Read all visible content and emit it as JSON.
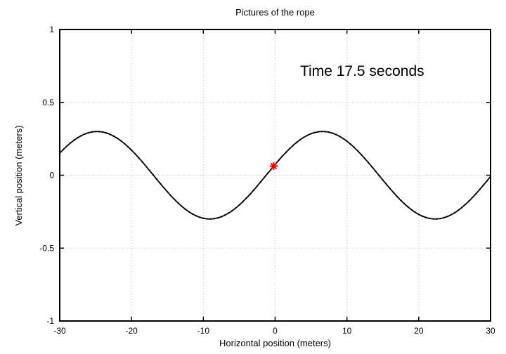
{
  "figure": {
    "title": "Pictures of the rope",
    "annotation": "Time 17.5 seconds",
    "xlabel": "Horizontal position (meters)",
    "ylabel": "Vertical position (meters)"
  },
  "colors": {
    "background": "#ffffff",
    "axis": "#000000",
    "grid": "#b8b8b8",
    "curve": "#000000",
    "marker": "#ff0000",
    "text": "#000000"
  },
  "chart_data": {
    "type": "line",
    "title": "Pictures of the rope",
    "xlabel": "Horizontal position (meters)",
    "ylabel": "Vertical position (meters)",
    "xlim": [
      -30,
      30
    ],
    "ylim": [
      -1,
      1
    ],
    "x_ticks": [
      -30,
      -20,
      -10,
      0,
      10,
      20,
      30
    ],
    "y_ticks": [
      -1,
      -0.5,
      0,
      0.5,
      1
    ],
    "grid": true,
    "legend": "none",
    "annotations": [
      {
        "text": "Time 17.5 seconds",
        "x": 3.5,
        "y": 0.72
      }
    ],
    "series": [
      {
        "name": "rope",
        "color": "#000000",
        "style": "line+points",
        "wave": {
          "amplitude": 0.3,
          "wavelength": 31.4,
          "crest_x": 6.6
        },
        "x": [
          -30,
          -29,
          -28,
          -27,
          -26,
          -25,
          -24,
          -23,
          -22,
          -21,
          -20,
          -19,
          -18,
          -17,
          -16,
          -15,
          -14,
          -13,
          -12,
          -11,
          -10,
          -9,
          -8,
          -7,
          -6,
          -5,
          -4,
          -3,
          -2,
          -1,
          0,
          1,
          2,
          3,
          4,
          5,
          6,
          7,
          8,
          9,
          10,
          11,
          12,
          13,
          14,
          15,
          16,
          17,
          18,
          19,
          20,
          21,
          22,
          23,
          24,
          25,
          26,
          27,
          28,
          29,
          30
        ],
        "y": [
          0.152,
          0.2,
          0.241,
          0.271,
          0.291,
          0.3,
          0.296,
          0.281,
          0.254,
          0.217,
          0.172,
          0.12,
          0.063,
          0.003,
          -0.057,
          -0.114,
          -0.167,
          -0.213,
          -0.251,
          -0.279,
          -0.295,
          -0.3,
          -0.293,
          -0.274,
          -0.244,
          -0.204,
          -0.156,
          -0.101,
          -0.045,
          0.015,
          0.074,
          0.13,
          0.182,
          0.225,
          0.26,
          0.285,
          0.298,
          0.299,
          0.288,
          0.266,
          0.233,
          0.191,
          0.141,
          0.086,
          0.027,
          -0.033,
          -0.091,
          -0.147,
          -0.196,
          -0.237,
          -0.269,
          -0.29,
          -0.299,
          -0.297,
          -0.283,
          -0.257,
          -0.221,
          -0.177,
          -0.126,
          -0.07,
          -0.011
        ]
      }
    ],
    "marker": {
      "shape": "asterisk",
      "color": "#ff0000",
      "x": -0.2,
      "y": 0.063
    }
  }
}
